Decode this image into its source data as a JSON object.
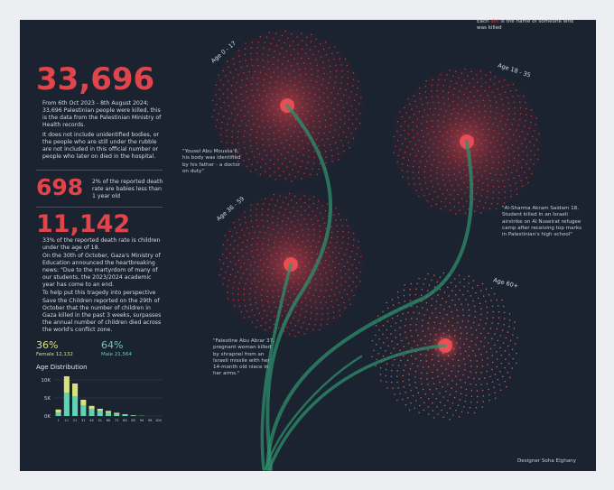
{
  "headline": {
    "total": "33,696",
    "text": "From 6th Oct 2023 - 8th August 2024; 33,696 Palestinian people were killed, this is the data from the Palestinian Ministry of Health records.",
    "note": "It does not include unidentified bodies, or the people who are still under the rubble are not included in this official number or people who later on died in the hospital."
  },
  "babies": {
    "number": "698",
    "text": "2% of the reported death rate are babies less than 1 year old"
  },
  "children": {
    "number": "11,142",
    "paragraphs": [
      "33% of the reported death rate is children under the age of 18.",
      "On the 30th of October, Gaza's Ministry of Education announced the heartbreaking news: \"Due to the martyrdom of many of our students, the 2023/2024 academic year has come to an end.",
      "To help put this tragedy into perspective Save the Children reported on the 29th of October that the number of children in Gaza killed in the past 3 weeks, surpasses the annual number of children died across the world's conflict zone."
    ]
  },
  "gender": [
    {
      "percent": "36%",
      "label": "Female 12,132"
    },
    {
      "percent": "64%",
      "label": "Male 21,564"
    }
  ],
  "legend_note": [
    "Each ",
    "dot",
    " is the name of someone who was killed"
  ],
  "flowers": [
    {
      "label": "Age 0 - 17"
    },
    {
      "label": "Age 18 - 35"
    },
    {
      "label": "Age 36 - 59"
    },
    {
      "label": "Age 60+"
    }
  ],
  "quotes": [
    "\"Yousel Abu Moussa 6, his body was identified by his father - a doctor on duty\"",
    "\"Al-Sharma Akram Saidam 18, Student killed in an Israeli airstrike on Al Nuseirat refugee camp after receiving top marks in Palestinian's high school\"",
    "\"Falestine Abu Abrar 37, pregnant woman killed by shrapnel from an Israeli missile with her 14-month old niece in her arms.\""
  ],
  "credit": "Designer Soha Elghany",
  "chart_data": {
    "type": "bar",
    "stacked": true,
    "title": "Age Distribution",
    "categories": [
      "1",
      "11",
      "21",
      "31",
      "40",
      "51",
      "60",
      "71",
      "80",
      "85",
      "94",
      "96",
      "100"
    ],
    "series": [
      {
        "color": "#5fd3b4",
        "values": [
          1000,
          6500,
          5500,
          3000,
          2000,
          1500,
          1000,
          600,
          300,
          150,
          50,
          0,
          0
        ]
      },
      {
        "color": "#d8e27a",
        "values": [
          800,
          4500,
          3500,
          1500,
          800,
          500,
          400,
          300,
          200,
          80,
          30,
          0,
          0
        ]
      }
    ],
    "ylim": [
      0,
      12000
    ],
    "yticks": [
      {
        "value": 0,
        "label": "0K"
      },
      {
        "value": 5000,
        "label": "5K"
      },
      {
        "value": 10000,
        "label": "10K"
      }
    ],
    "grid": true
  }
}
